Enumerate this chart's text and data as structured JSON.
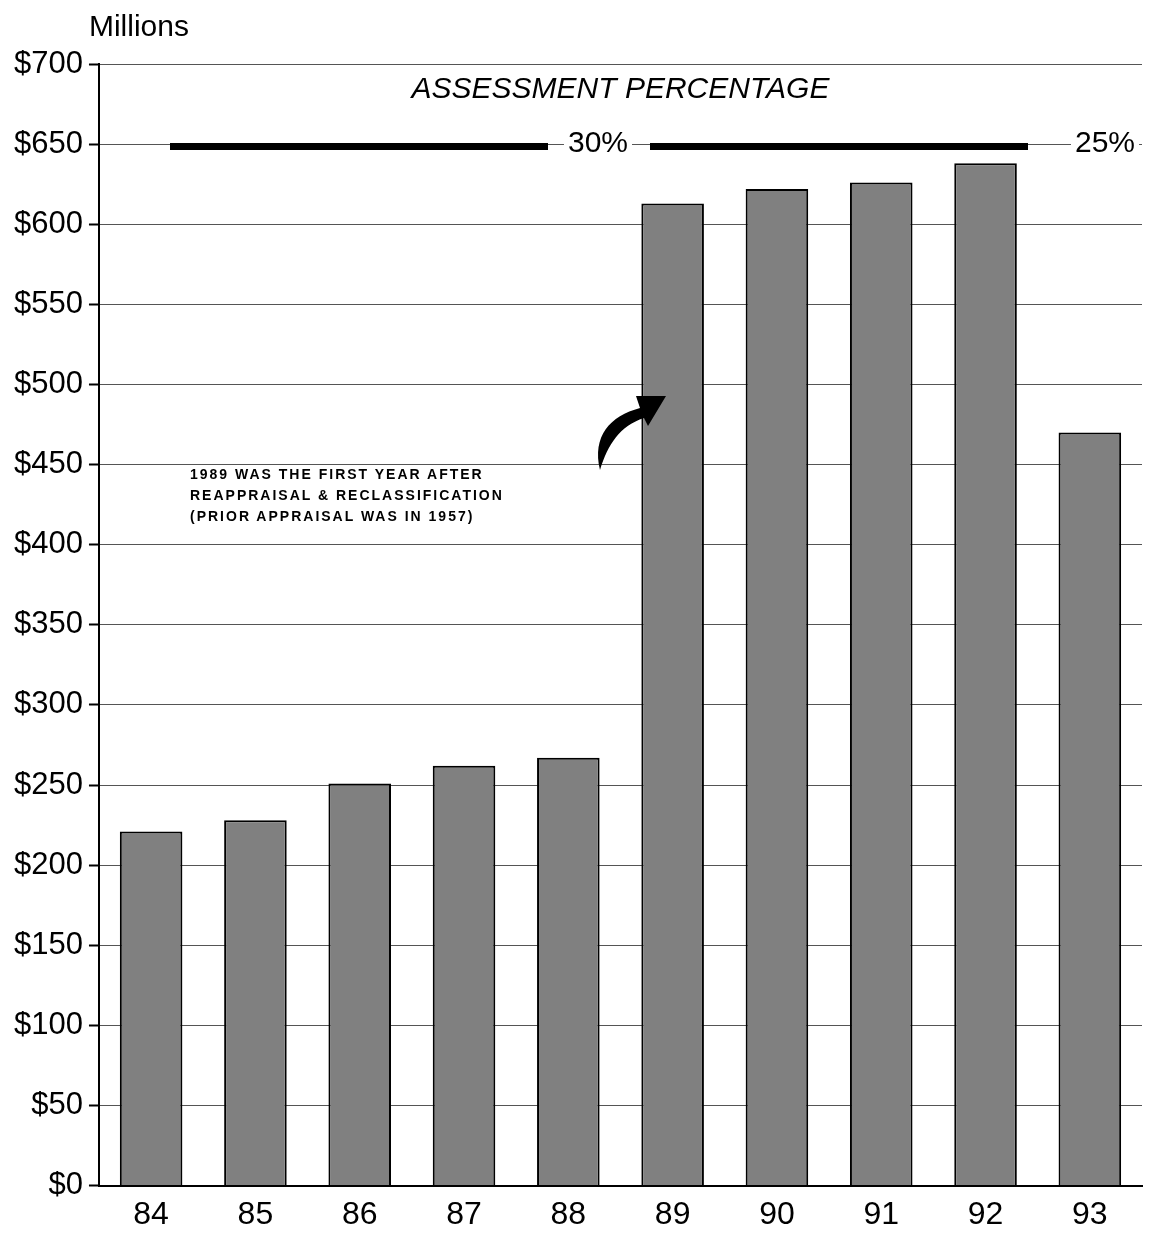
{
  "chart_data": {
    "type": "bar",
    "ylabel": "Millions",
    "categories": [
      "84",
      "85",
      "86",
      "87",
      "88",
      "89",
      "90",
      "91",
      "92",
      "93"
    ],
    "values": [
      221,
      228,
      251,
      262,
      267,
      613,
      622,
      626,
      638,
      470
    ],
    "color": "#808080",
    "ylim": [
      0,
      700
    ],
    "yticks": [
      {
        "value": 0,
        "label": "$0"
      },
      {
        "value": 50,
        "label": "$50"
      },
      {
        "value": 100,
        "label": "$100"
      },
      {
        "value": 150,
        "label": "$150"
      },
      {
        "value": 200,
        "label": "$200"
      },
      {
        "value": 250,
        "label": "$250"
      },
      {
        "value": 300,
        "label": "$300"
      },
      {
        "value": 350,
        "label": "$350"
      },
      {
        "value": 400,
        "label": "$400"
      },
      {
        "value": 450,
        "label": "$450"
      },
      {
        "value": 500,
        "label": "$500"
      },
      {
        "value": 550,
        "label": "$550"
      },
      {
        "value": 600,
        "label": "$600"
      },
      {
        "value": 650,
        "label": "$650"
      },
      {
        "value": 700,
        "label": "$700"
      }
    ],
    "grid": "y",
    "legend": false,
    "annotations": [
      "ASSESSMENT PERCENTAGE",
      "30%",
      "25%",
      "1989 WAS THE FIRST YEAR AFTER\nREAPPRAISAL & RECLASSIFICATION\n(PRIOR APPRAISAL WAS IN 1957)"
    ]
  }
}
